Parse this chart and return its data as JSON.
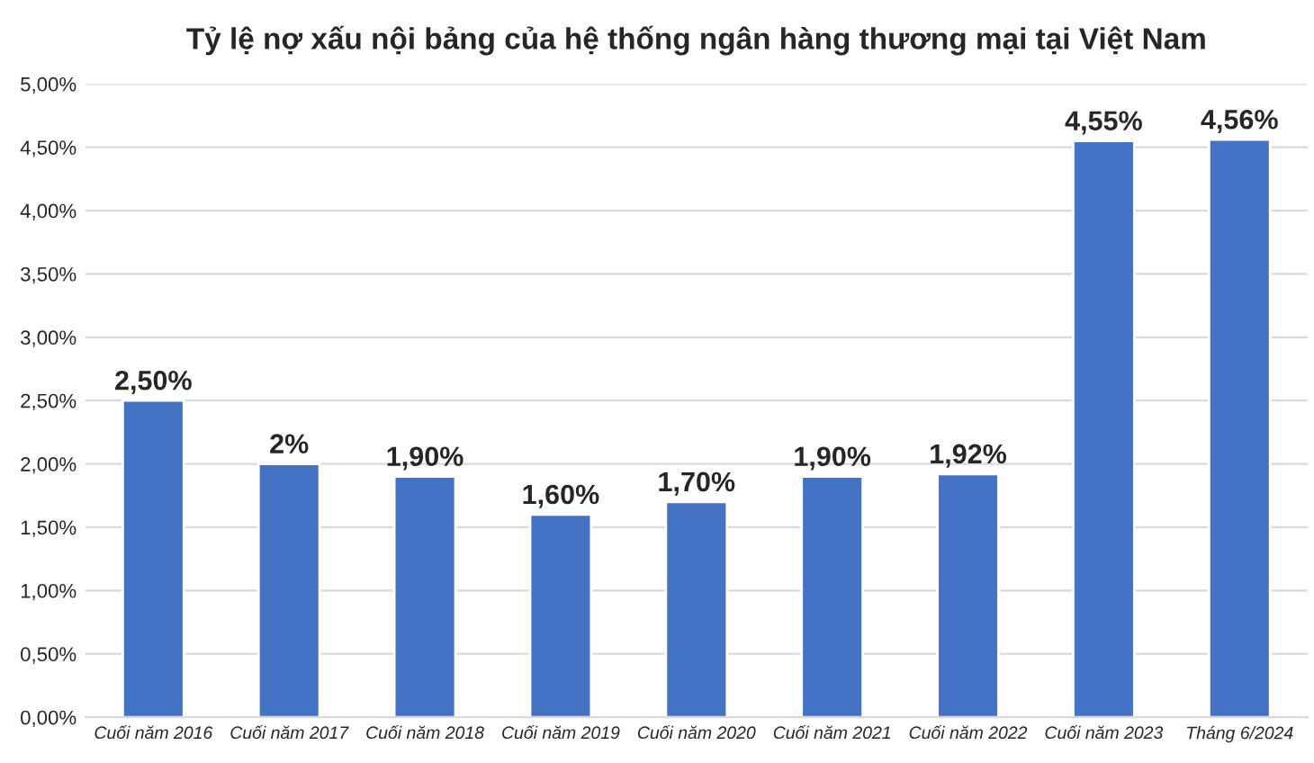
{
  "chart_data": {
    "type": "bar",
    "title": "Tỷ lệ nợ xấu nội bảng của hệ thống ngân hàng thương mại tại Việt Nam",
    "categories": [
      "Cuối năm 2016",
      "Cuối năm 2017",
      "Cuối năm 2018",
      "Cuối năm 2019",
      "Cuối năm 2020",
      "Cuối năm 2021",
      "Cuối năm 2022",
      "Cuối năm 2023",
      "Tháng 6/2024"
    ],
    "values": [
      2.5,
      2,
      1.9,
      1.6,
      1.7,
      1.9,
      1.92,
      4.55,
      4.56
    ],
    "value_labels": [
      "2,50%",
      "2%",
      "1,90%",
      "1,60%",
      "1,70%",
      "1,90%",
      "1,92%",
      "4,55%",
      "4,56%"
    ],
    "color": "#4472c4",
    "ylim": [
      0,
      5
    ],
    "yticks": [
      {
        "value": 0,
        "label": "0,00%"
      },
      {
        "value": 0.5,
        "label": "0,50%"
      },
      {
        "value": 1,
        "label": "1,00%"
      },
      {
        "value": 1.5,
        "label": "1,50%"
      },
      {
        "value": 2,
        "label": "2,00%"
      },
      {
        "value": 2.5,
        "label": "2,50%"
      },
      {
        "value": 3,
        "label": "3,00%"
      },
      {
        "value": 3.5,
        "label": "3,50%"
      },
      {
        "value": 4,
        "label": "4,00%"
      },
      {
        "value": 4.5,
        "label": "4,50%"
      },
      {
        "value": 5,
        "label": "5,00%"
      }
    ],
    "grid": "y"
  }
}
